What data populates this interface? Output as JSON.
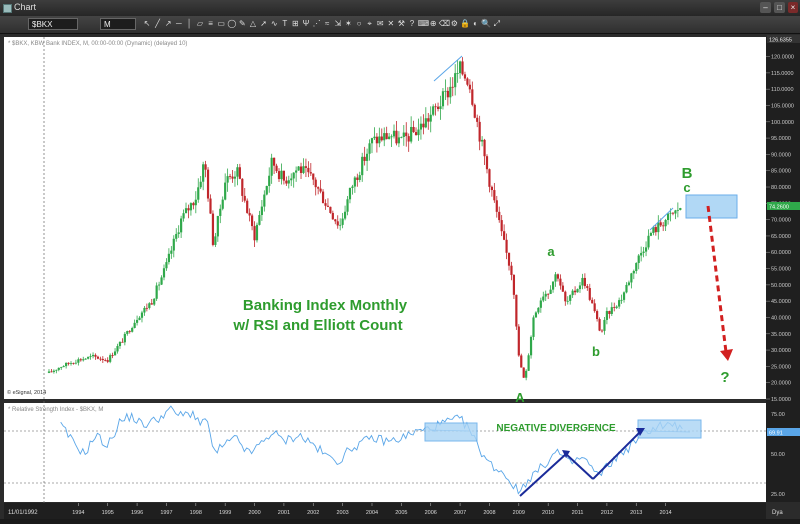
{
  "window": {
    "title": "Chart"
  },
  "toolbar": {
    "symbol": "$BKX",
    "interval": "M",
    "tools": [
      "pointer-icon",
      "line-icon",
      "ray-icon",
      "horizontal-line-icon",
      "vertical-line-icon",
      "channel-icon",
      "fibonacci-icon",
      "box-icon",
      "ellipse-icon",
      "pen-icon",
      "triangle-icon",
      "arrow-icon",
      "cycle-icon",
      "text-icon",
      "gann-icon",
      "pitchfork-icon",
      "speed-lines-icon",
      "regression-icon",
      "measure-icon",
      "fan-icon",
      "circle-icon",
      "cursor-icon",
      "note-icon",
      "delete-icon",
      "tools-icon",
      "help-icon",
      "keys-icon",
      "magnet-icon",
      "eraser-icon",
      "settings-icon",
      "lock-icon",
      "hide-icon",
      "zoom-icon",
      "expand-icon"
    ]
  },
  "price_pane": {
    "header": "* $BKX, KBW Bank INDEX, M, 00:00-00:00 (Dynamic) (delayed 10)",
    "copyright": "© eSignal, 2014",
    "last_price": "74.2600",
    "top_label": "126.6355",
    "title_line1": "Banking Index Monthly",
    "title_line2": "w/ RSI and Elliott Count",
    "wave_labels": [
      "A",
      "a",
      "b",
      "B",
      "c",
      "?"
    ],
    "colors": {
      "up": "#2fa84a",
      "down": "#c0262b",
      "label": "#2e9c2e",
      "target": "#a9d4f5",
      "arrow": "#d22020"
    }
  },
  "rsi_pane": {
    "header": "* Relative Strength Index - $BKX, M",
    "value_label": "69.91",
    "annotation": "NEGATIVE DIVERGENCE",
    "colors": {
      "line": "#5aa6e8",
      "arrow": "#1a2b9a",
      "box": "#a9d4f5"
    }
  },
  "time_axis": {
    "date_label": "11/01/1992",
    "years": [
      "1994",
      "1995",
      "1996",
      "1997",
      "1998",
      "1999",
      "2000",
      "2001",
      "2002",
      "2003",
      "2004",
      "2005",
      "2006",
      "2007",
      "2008",
      "2009",
      "2010",
      "2011",
      "2012",
      "2013",
      "2014"
    ],
    "dya": "Dya"
  },
  "chart_data": {
    "type": "candlestick",
    "symbol": "$BKX",
    "interval": "M",
    "y_axis_labels": [
      "120.0000",
      "115.0000",
      "110.0000",
      "105.0000",
      "100.0000",
      "95.0000",
      "90.0000",
      "85.0000",
      "80.0000",
      "75.0000",
      "70.0000",
      "65.0000",
      "60.0000",
      "55.0000",
      "50.0000",
      "45.0000",
      "40.0000",
      "35.0000",
      "30.0000",
      "25.0000",
      "20.0000",
      "15.0000"
    ],
    "ylim": [
      15,
      126
    ],
    "price_path": [
      [
        1993.0,
        23
      ],
      [
        1993.4,
        25
      ],
      [
        1994.0,
        27
      ],
      [
        1994.5,
        28
      ],
      [
        1995.0,
        27
      ],
      [
        1995.5,
        33
      ],
      [
        1996.0,
        40
      ],
      [
        1996.5,
        45
      ],
      [
        1997.0,
        56
      ],
      [
        1997.5,
        70
      ],
      [
        1998.0,
        77
      ],
      [
        1998.3,
        88
      ],
      [
        1998.6,
        62
      ],
      [
        1999.0,
        82
      ],
      [
        1999.4,
        85
      ],
      [
        1999.8,
        71
      ],
      [
        2000.0,
        65
      ],
      [
        2000.6,
        88
      ],
      [
        2001.0,
        82
      ],
      [
        2001.5,
        86
      ],
      [
        2002.0,
        82
      ],
      [
        2002.5,
        74
      ],
      [
        2002.9,
        68
      ],
      [
        2003.3,
        80
      ],
      [
        2004.0,
        94
      ],
      [
        2004.6,
        96
      ],
      [
        2005.0,
        94
      ],
      [
        2005.6,
        98
      ],
      [
        2006.0,
        102
      ],
      [
        2006.5,
        108
      ],
      [
        2007.0,
        116
      ],
      [
        2007.3,
        113
      ],
      [
        2007.6,
        99
      ],
      [
        2008.0,
        82
      ],
      [
        2008.4,
        66
      ],
      [
        2008.8,
        52
      ],
      [
        2009.0,
        28
      ],
      [
        2009.2,
        20
      ],
      [
        2009.5,
        40
      ],
      [
        2009.8,
        47
      ],
      [
        2010.0,
        48
      ],
      [
        2010.3,
        54
      ],
      [
        2010.6,
        44
      ],
      [
        2010.9,
        48
      ],
      [
        2011.2,
        52
      ],
      [
        2011.5,
        44
      ],
      [
        2011.8,
        35
      ],
      [
        2012.0,
        41
      ],
      [
        2012.5,
        46
      ],
      [
        2013.0,
        57
      ],
      [
        2013.5,
        66
      ],
      [
        2014.0,
        70
      ],
      [
        2014.3,
        72
      ],
      [
        2014.5,
        74
      ]
    ],
    "rsi_axis_labels": [
      "75.00",
      "50.00",
      "25.00"
    ],
    "rsi_ylim": [
      20,
      82
    ],
    "rsi_path": [
      [
        1993.4,
        68
      ],
      [
        1993.8,
        58
      ],
      [
        1994.2,
        50
      ],
      [
        1994.6,
        62
      ],
      [
        1995.0,
        55
      ],
      [
        1995.4,
        70
      ],
      [
        1995.8,
        74
      ],
      [
        1996.2,
        68
      ],
      [
        1996.7,
        72
      ],
      [
        1997.1,
        78
      ],
      [
        1997.5,
        74
      ],
      [
        1997.9,
        76
      ],
      [
        1998.2,
        68
      ],
      [
        1998.4,
        72
      ],
      [
        1998.6,
        50
      ],
      [
        1999.0,
        56
      ],
      [
        1999.4,
        60
      ],
      [
        1999.8,
        50
      ],
      [
        2000.2,
        56
      ],
      [
        2000.6,
        64
      ],
      [
        2001.0,
        58
      ],
      [
        2001.5,
        62
      ],
      [
        2002.0,
        56
      ],
      [
        2002.5,
        48
      ],
      [
        2002.9,
        46
      ],
      [
        2003.3,
        54
      ],
      [
        2004.0,
        60
      ],
      [
        2004.6,
        58
      ],
      [
        2005.0,
        60
      ],
      [
        2005.5,
        64
      ],
      [
        2006.0,
        66
      ],
      [
        2006.5,
        70
      ],
      [
        2007.0,
        72
      ],
      [
        2007.3,
        66
      ],
      [
        2007.6,
        55
      ],
      [
        2008.0,
        44
      ],
      [
        2008.5,
        38
      ],
      [
        2009.0,
        26
      ],
      [
        2009.3,
        34
      ],
      [
        2009.8,
        42
      ],
      [
        2010.3,
        52
      ],
      [
        2010.7,
        44
      ],
      [
        2011.2,
        48
      ],
      [
        2011.7,
        36
      ],
      [
        2012.2,
        46
      ],
      [
        2012.8,
        55
      ],
      [
        2013.3,
        64
      ],
      [
        2013.8,
        68
      ],
      [
        2014.3,
        68
      ],
      [
        2014.6,
        66
      ]
    ],
    "legend": "none",
    "grid": false
  }
}
